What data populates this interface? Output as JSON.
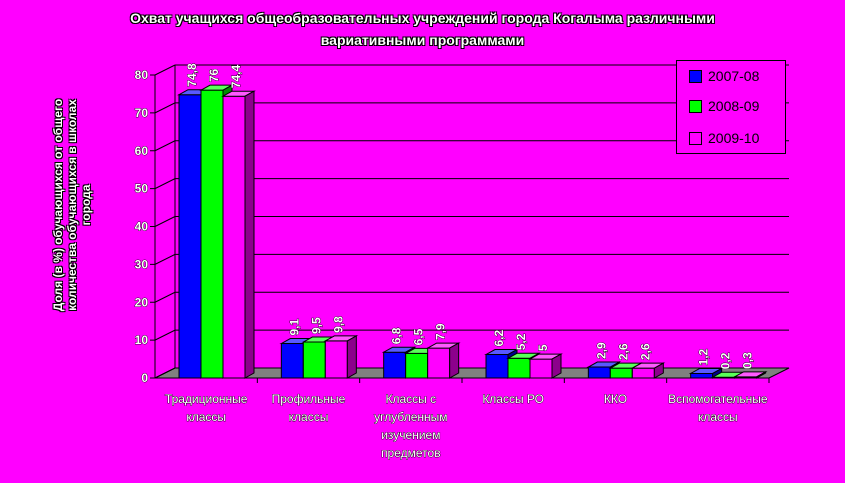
{
  "chart_data": {
    "type": "bar",
    "title_lines": [
      "Охват учащихся общеобразовательных учреждений города Когалыма различными",
      "вариативными программами"
    ],
    "ylabel_lines": [
      "Доля (в %) обучающихся от общего",
      "количества обучающихся в школах",
      "города"
    ],
    "ylim": [
      0,
      80
    ],
    "yticks": [
      0,
      10,
      20,
      30,
      40,
      50,
      60,
      70,
      80
    ],
    "grid": true,
    "legend_position": "top-right",
    "categories": [
      [
        "Традиционные",
        "классы"
      ],
      [
        "Профильные",
        "классы"
      ],
      [
        "Классы с",
        "углубленным",
        "изучением",
        "предметов"
      ],
      [
        "Классы РО"
      ],
      [
        "ККО"
      ],
      [
        "Вспомогательные",
        "классы"
      ]
    ],
    "series": [
      {
        "name": "2007-08",
        "color": "#0000ff",
        "values": [
          74.8,
          9.1,
          6.8,
          6.2,
          2.9,
          1.2
        ],
        "labels": [
          "74,8",
          "9,1",
          "6,8",
          "6,2",
          "2,9",
          "1,2"
        ]
      },
      {
        "name": "2008-09",
        "color": "#00ff00",
        "values": [
          76,
          9.5,
          6.5,
          5.2,
          2.6,
          0.2
        ],
        "labels": [
          "76",
          "9,5",
          "6,5",
          "5,2",
          "2,6",
          "0,2"
        ]
      },
      {
        "name": "2009-10",
        "color": "#ff00ff",
        "values": [
          74.4,
          9.8,
          7.9,
          5,
          2.6,
          0.3
        ],
        "labels": [
          "74,4",
          "9,8",
          "7,9",
          "5",
          "2,6",
          "0,3"
        ]
      }
    ]
  }
}
